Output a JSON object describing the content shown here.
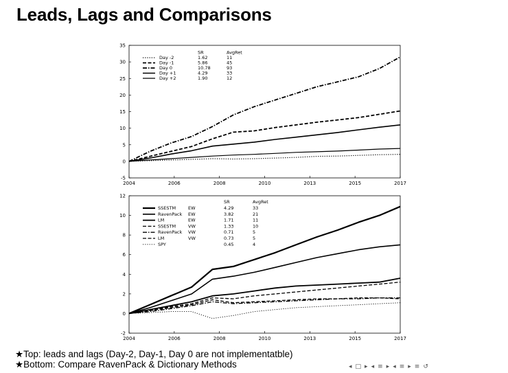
{
  "page": {
    "title": "Leads, Lags and Comparisons",
    "notes": [
      "★Top: leads and lags (Day-2, Day-1, Day 0 are not implementatble)",
      "★Bottom: Compare RavenPack & Dictionary Methods"
    ]
  },
  "nav_icons": [
    "nav-prev-frame-icon",
    "nav-frame-icon",
    "nav-next-frame-icon",
    "nav-prev-section-icon",
    "nav-section-icon",
    "nav-next-section-icon",
    "nav-prev-subsection-icon",
    "nav-subsection-icon",
    "nav-next-subsection-icon",
    "nav-align-icon",
    "nav-search-icon"
  ],
  "chart_data": [
    {
      "type": "line",
      "x_tick_labels": [
        "2004",
        "2006",
        "2008",
        "2010",
        "2013",
        "2015",
        "2017"
      ],
      "xlim": [
        2004,
        2017
      ],
      "ylim": [
        -5,
        35
      ],
      "y_ticks": [
        -5,
        0,
        5,
        10,
        15,
        20,
        25,
        30,
        35
      ],
      "grid": false,
      "legend_position": "top-left",
      "legend_header": [
        "",
        "SR",
        "AvgRet"
      ],
      "series": [
        {
          "name": "Day -2",
          "sr": "1.62",
          "avgret": "11",
          "style": "dotted",
          "x": [
            2004,
            2005,
            2006,
            2007,
            2008,
            2009,
            2010,
            2011,
            2012,
            2013,
            2014,
            2015,
            2016,
            2017
          ],
          "values": [
            0,
            0.2,
            0.4,
            0.6,
            0.8,
            0.7,
            0.8,
            1.0,
            1.2,
            1.5,
            1.6,
            1.8,
            2.0,
            2.1
          ]
        },
        {
          "name": "Day -1",
          "sr": "5.86",
          "avgret": "45",
          "style": "dashed",
          "x": [
            2004,
            2005,
            2006,
            2007,
            2008,
            2009,
            2010,
            2011,
            2012,
            2013,
            2014,
            2015,
            2016,
            2017
          ],
          "values": [
            0,
            1.5,
            3.0,
            4.5,
            6.8,
            8.8,
            9.2,
            10.2,
            11.0,
            11.8,
            12.5,
            13.2,
            14.2,
            15.2
          ]
        },
        {
          "name": "Day 0",
          "sr": "10.78",
          "avgret": "93",
          "style": "dashdot",
          "x": [
            2004,
            2005,
            2006,
            2007,
            2008,
            2009,
            2010,
            2011,
            2012,
            2013,
            2014,
            2015,
            2016,
            2017
          ],
          "values": [
            0,
            3.0,
            5.5,
            7.5,
            10.5,
            14.0,
            16.5,
            18.5,
            20.5,
            22.5,
            24.0,
            25.5,
            28.0,
            31.5
          ]
        },
        {
          "name": "Day +1",
          "sr": "4.29",
          "avgret": "33",
          "style": "solid",
          "x": [
            2004,
            2005,
            2006,
            2007,
            2008,
            2009,
            2010,
            2011,
            2012,
            2013,
            2014,
            2015,
            2016,
            2017
          ],
          "values": [
            0,
            1.0,
            2.2,
            3.2,
            4.6,
            5.2,
            5.8,
            6.6,
            7.3,
            8.0,
            8.7,
            9.5,
            10.3,
            11.0
          ]
        },
        {
          "name": "Day +2",
          "sr": "1.90",
          "avgret": "12",
          "style": "solid",
          "x": [
            2004,
            2005,
            2006,
            2007,
            2008,
            2009,
            2010,
            2011,
            2012,
            2013,
            2014,
            2015,
            2016,
            2017
          ],
          "values": [
            0,
            0.4,
            0.8,
            1.2,
            1.6,
            1.9,
            2.1,
            2.4,
            2.7,
            2.9,
            3.1,
            3.4,
            3.7,
            3.9
          ]
        }
      ]
    },
    {
      "type": "line",
      "x_tick_labels": [
        "2004",
        "2006",
        "2008",
        "2010",
        "2013",
        "2015",
        "2017"
      ],
      "xlim": [
        2004,
        2017
      ],
      "ylim": [
        -2,
        12
      ],
      "y_ticks": [
        -2,
        0,
        2,
        4,
        6,
        8,
        10,
        12
      ],
      "grid": false,
      "legend_position": "top-left",
      "legend_header": [
        "",
        "",
        "SR",
        "AvgRet"
      ],
      "series": [
        {
          "name": "SSESTM",
          "weight": "EW",
          "sr": "4.29",
          "avgret": "33",
          "style": "solid",
          "x": [
            2004,
            2005,
            2006,
            2007,
            2008,
            2009,
            2010,
            2011,
            2012,
            2013,
            2014,
            2015,
            2016,
            2017
          ],
          "values": [
            0,
            0.9,
            1.8,
            2.7,
            4.5,
            4.8,
            5.5,
            6.2,
            7.0,
            7.8,
            8.5,
            9.3,
            10.0,
            10.9
          ]
        },
        {
          "name": "RavenPack",
          "weight": "EW",
          "sr": "3.82",
          "avgret": "21",
          "style": "solid",
          "x": [
            2004,
            2005,
            2006,
            2007,
            2008,
            2009,
            2010,
            2011,
            2012,
            2013,
            2014,
            2015,
            2016,
            2017
          ],
          "values": [
            0,
            0.6,
            1.3,
            2.0,
            3.5,
            3.8,
            4.2,
            4.7,
            5.2,
            5.7,
            6.1,
            6.5,
            6.8,
            7.0
          ]
        },
        {
          "name": "LM",
          "weight": "EW",
          "sr": "1.71",
          "avgret": "11",
          "style": "solid",
          "x": [
            2004,
            2005,
            2006,
            2007,
            2008,
            2009,
            2010,
            2011,
            2012,
            2013,
            2014,
            2015,
            2016,
            2017
          ],
          "values": [
            0,
            0.4,
            0.8,
            1.2,
            1.8,
            2.0,
            2.3,
            2.6,
            2.8,
            2.9,
            3.0,
            3.1,
            3.2,
            3.6
          ]
        },
        {
          "name": "SSESTM",
          "weight": "VW",
          "sr": "1.33",
          "avgret": "10",
          "style": "dashed",
          "x": [
            2004,
            2005,
            2006,
            2007,
            2008,
            2009,
            2010,
            2011,
            2012,
            2013,
            2014,
            2015,
            2016,
            2017
          ],
          "values": [
            0,
            0.3,
            0.7,
            1.0,
            1.6,
            1.5,
            1.8,
            2.0,
            2.2,
            2.4,
            2.6,
            2.8,
            3.0,
            3.2
          ]
        },
        {
          "name": "RavenPack",
          "weight": "VW",
          "sr": "0.71",
          "avgret": "5",
          "style": "dashdot",
          "x": [
            2004,
            2005,
            2006,
            2007,
            2008,
            2009,
            2010,
            2011,
            2012,
            2013,
            2014,
            2015,
            2016,
            2017
          ],
          "values": [
            0,
            0.2,
            0.5,
            0.8,
            1.2,
            1.0,
            1.1,
            1.2,
            1.3,
            1.4,
            1.5,
            1.5,
            1.6,
            1.6
          ]
        },
        {
          "name": "LM",
          "weight": "VW",
          "sr": "0.73",
          "avgret": "5",
          "style": "dashed",
          "x": [
            2004,
            2005,
            2006,
            2007,
            2008,
            2009,
            2010,
            2011,
            2012,
            2013,
            2014,
            2015,
            2016,
            2017
          ],
          "values": [
            0,
            0.3,
            0.6,
            0.9,
            1.4,
            1.1,
            1.2,
            1.3,
            1.4,
            1.5,
            1.5,
            1.6,
            1.6,
            1.5
          ]
        },
        {
          "name": "SPY",
          "weight": "",
          "sr": "0.45",
          "avgret": "4",
          "style": "dotted",
          "x": [
            2004,
            2005,
            2006,
            2007,
            2008,
            2009,
            2010,
            2011,
            2012,
            2013,
            2014,
            2015,
            2016,
            2017
          ],
          "values": [
            0,
            0.1,
            0.2,
            0.2,
            -0.5,
            -0.2,
            0.2,
            0.4,
            0.6,
            0.7,
            0.8,
            0.9,
            1.0,
            1.1
          ]
        }
      ]
    }
  ]
}
